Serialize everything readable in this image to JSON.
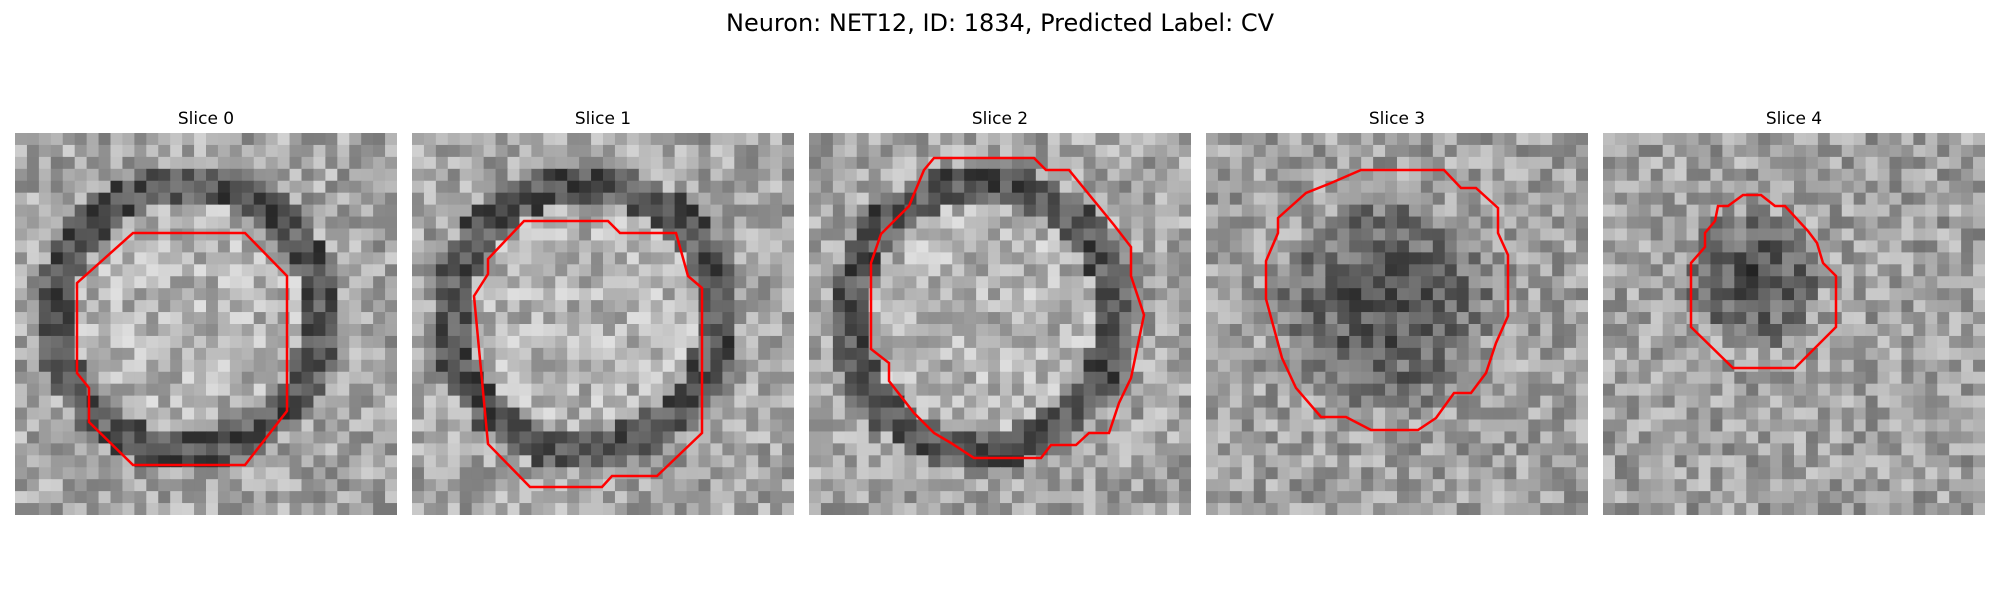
{
  "figure": {
    "title": "Neuron: NET12, ID: 1834, Predicted Label: CV"
  },
  "panels": [
    {
      "title": "Slice 0",
      "pattern": "pale-center-dark-ring"
    },
    {
      "title": "Slice 1",
      "pattern": "pale-center-dark-ring"
    },
    {
      "title": "Slice 2",
      "pattern": "pale-center-dark-ring"
    },
    {
      "title": "Slice 3",
      "pattern": "dark-center"
    },
    {
      "title": "Slice 4",
      "pattern": "dark-small-center"
    }
  ],
  "colors": {
    "contour": "#ff0000",
    "background": "#ffffff"
  }
}
